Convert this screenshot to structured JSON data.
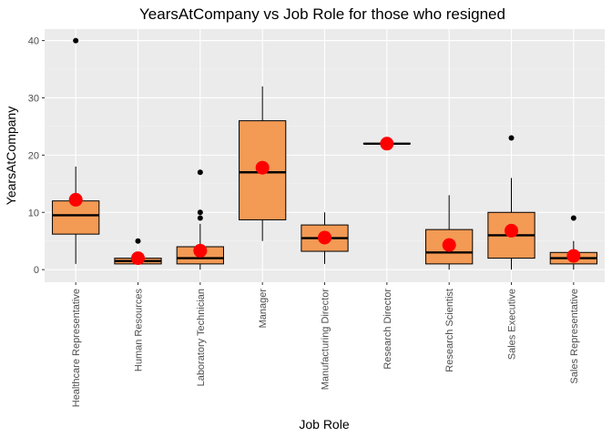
{
  "chart_data": {
    "type": "box",
    "title": "YearsAtCompany vs Job Role for those who resigned",
    "xlabel": "Job Role",
    "ylabel": "YearsAtCompany",
    "ylim": [
      -2.2,
      42
    ],
    "yticks": [
      0,
      10,
      20,
      30,
      40
    ],
    "grid": true,
    "colors": {
      "panel_bg": "#ebebeb",
      "box_fill": "#f39a55",
      "box_stroke": "#000000",
      "mean_point": "#ff0000",
      "outlier": "#000000"
    },
    "categories": [
      "Healthcare Representative",
      "Human Resources",
      "Laboratory Technician",
      "Manager",
      "Manufacturing Director",
      "Research Director",
      "Research Scientist",
      "Sales Executive",
      "Sales Representative"
    ],
    "boxes": [
      {
        "category": "Healthcare Representative",
        "min": 1,
        "q1": 6.2,
        "median": 9.5,
        "q3": 12,
        "max": 18,
        "mean": 12.2,
        "outliers": [
          40
        ]
      },
      {
        "category": "Human Resources",
        "min": 1,
        "q1": 1,
        "median": 1.5,
        "q3": 2,
        "max": 3,
        "mean": 2,
        "outliers": [
          5
        ]
      },
      {
        "category": "Laboratory Technician",
        "min": 0,
        "q1": 1,
        "median": 2,
        "q3": 4,
        "max": 8,
        "mean": 3.3,
        "outliers": [
          9,
          10,
          17
        ]
      },
      {
        "category": "Manager",
        "min": 5,
        "q1": 8.7,
        "median": 17,
        "q3": 26,
        "max": 32,
        "mean": 17.8,
        "outliers": []
      },
      {
        "category": "Manufacturing Director",
        "min": 1,
        "q1": 3.2,
        "median": 5.5,
        "q3": 7.8,
        "max": 10,
        "mean": 5.6,
        "outliers": []
      },
      {
        "category": "Research Director",
        "min": 22,
        "q1": 22,
        "median": 22,
        "q3": 22,
        "max": 22,
        "mean": 22,
        "outliers": []
      },
      {
        "category": "Research Scientist",
        "min": 0,
        "q1": 1,
        "median": 3,
        "q3": 7,
        "max": 13,
        "mean": 4.3,
        "outliers": []
      },
      {
        "category": "Sales Executive",
        "min": 0,
        "q1": 2,
        "median": 6,
        "q3": 10,
        "max": 16,
        "mean": 6.8,
        "outliers": [
          23
        ]
      },
      {
        "category": "Sales Representative",
        "min": 0,
        "q1": 1,
        "median": 2,
        "q3": 3,
        "max": 5,
        "mean": 2.4,
        "outliers": [
          9
        ]
      }
    ]
  }
}
